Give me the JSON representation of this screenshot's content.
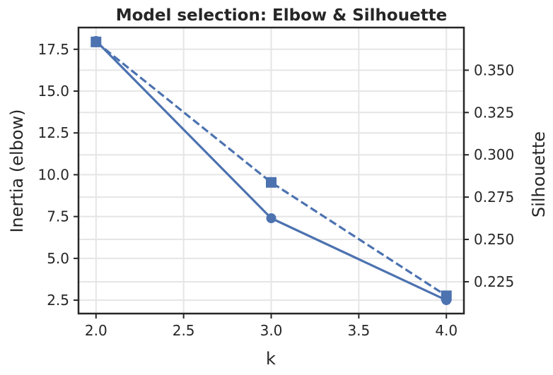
{
  "chart_data": {
    "type": "line",
    "title": "Model selection: Elbow & Silhouette",
    "xlabel": "k",
    "ylabel_left": "Inertia (elbow)",
    "ylabel_right": "Silhouette",
    "x": [
      2.0,
      3.0,
      4.0
    ],
    "xlim": [
      1.9,
      4.1
    ],
    "ylim_left": [
      1.7,
      18.8
    ],
    "ylim_right": [
      0.2062,
      0.3752
    ],
    "x_ticks": [
      "2.0",
      "2.5",
      "3.0",
      "3.5",
      "4.0"
    ],
    "x_tick_values": [
      2.0,
      2.5,
      3.0,
      3.5,
      4.0
    ],
    "y_left_ticks": [
      "2.5",
      "5.0",
      "7.5",
      "10.0",
      "12.5",
      "15.0",
      "17.5"
    ],
    "y_left_tick_values": [
      2.5,
      5.0,
      7.5,
      10.0,
      12.5,
      15.0,
      17.5
    ],
    "y_right_ticks": [
      "0.225",
      "0.250",
      "0.275",
      "0.300",
      "0.325",
      "0.350"
    ],
    "y_right_tick_values": [
      0.225,
      0.25,
      0.275,
      0.3,
      0.325,
      0.35
    ],
    "grid": true,
    "series": [
      {
        "axis": "left",
        "values": [
          18.0,
          7.4,
          2.5
        ],
        "style": "solid",
        "marker": "circle"
      },
      {
        "axis": "right",
        "values": [
          0.3667,
          0.2837,
          0.2167
        ],
        "style": "dashed",
        "marker": "square"
      }
    ],
    "colors": {
      "series": "#4c72b0",
      "grid": "#e5e5e5",
      "axes": "#262626"
    }
  }
}
